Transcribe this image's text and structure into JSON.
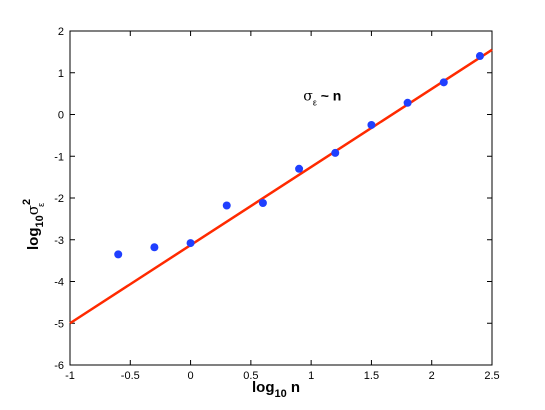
{
  "chart_data": {
    "type": "scatter",
    "xlabel": {
      "base": "log",
      "sub": "10",
      "rest": " n"
    },
    "ylabel": {
      "base": "log",
      "sub": "10",
      "sym": "σ",
      "sup": "2",
      "sub2": "ε"
    },
    "annotation": {
      "sym": "σ",
      "sub": "ε",
      "rest": " ~ n",
      "x": 1.2,
      "y": 0.45
    },
    "xlim": [
      -1,
      2.5
    ],
    "ylim": [
      -6,
      2
    ],
    "xticks": [
      -1,
      -0.5,
      0,
      0.5,
      1,
      1.5,
      2,
      2.5
    ],
    "yticks": [
      -6,
      -5,
      -4,
      -3,
      -2,
      -1,
      0,
      1,
      2
    ],
    "xtick_labels": [
      "-1",
      "-0.5",
      "0",
      "0.5",
      "1",
      "1.5",
      "2",
      "2.5"
    ],
    "ytick_labels": [
      "-6",
      "-5",
      "-4",
      "-3",
      "-2",
      "-1",
      "0",
      "1",
      "2"
    ],
    "series": [
      {
        "type": "scatter",
        "color": "#1f3fff",
        "x": [
          -0.6,
          -0.3,
          0.0,
          0.3,
          0.6,
          0.9,
          1.2,
          1.5,
          1.8,
          2.1,
          2.4
        ],
        "y": [
          -3.35,
          -3.18,
          -3.08,
          -2.18,
          -2.12,
          -1.3,
          -0.92,
          -0.25,
          0.28,
          0.77,
          1.4
        ]
      },
      {
        "type": "line",
        "color": "#ff2a00",
        "x": [
          -1,
          2.5
        ],
        "y": [
          -5.0,
          1.55
        ]
      }
    ],
    "grid": false,
    "legend": "none"
  }
}
